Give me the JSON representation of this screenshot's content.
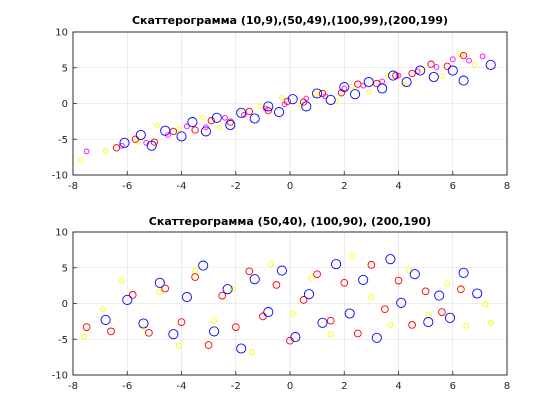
{
  "chart_data": [
    {
      "type": "scatter",
      "title": "Скаттерограмма (10,9),(50,49),(100,99),(200,199)",
      "xlabel": "",
      "ylabel": "",
      "xlim": [
        -8,
        8
      ],
      "ylim": [
        -10,
        10
      ],
      "xticks": [
        -8,
        -6,
        -4,
        -2,
        0,
        2,
        4,
        6,
        8
      ],
      "yticks": [
        -10,
        -5,
        0,
        5,
        10
      ],
      "grid": true,
      "marker": "circle-open",
      "colors": [
        "#ffff00",
        "#ff00ff",
        "#ff0000",
        "#0000ff"
      ],
      "series": [
        {
          "color": "#ffff00",
          "points": [
            [
              -7.7,
              -7.9
            ],
            [
              -6.8,
              -6.6
            ],
            [
              -5.6,
              -5.4
            ],
            [
              -4.9,
              -3.1
            ],
            [
              -4.1,
              -3.6
            ],
            [
              -3.2,
              -2.0
            ],
            [
              -2.6,
              -3.3
            ],
            [
              -1.8,
              -1.2
            ],
            [
              -1.1,
              -0.4
            ],
            [
              -0.3,
              0.8
            ],
            [
              0.4,
              -0.2
            ],
            [
              1.0,
              1.3
            ],
            [
              1.7,
              0.4
            ],
            [
              2.3,
              2.4
            ],
            [
              2.9,
              1.6
            ],
            [
              3.6,
              3.9
            ],
            [
              4.2,
              2.6
            ],
            [
              4.9,
              4.7
            ],
            [
              5.6,
              3.8
            ],
            [
              6.3,
              6.8
            ],
            [
              6.8,
              5.4
            ]
          ]
        },
        {
          "color": "#ff00ff",
          "points": [
            [
              -7.5,
              -6.7
            ],
            [
              -6.2,
              -5.9
            ],
            [
              -5.3,
              -5.5
            ],
            [
              -4.5,
              -4.4
            ],
            [
              -3.8,
              -3.2
            ],
            [
              -3.1,
              -3.3
            ],
            [
              -2.4,
              -2.0
            ],
            [
              -1.7,
              -1.6
            ],
            [
              -0.9,
              -0.7
            ],
            [
              -0.2,
              -0.1
            ],
            [
              0.6,
              0.7
            ],
            [
              1.3,
              1.0
            ],
            [
              2.0,
              2.1
            ],
            [
              2.7,
              2.5
            ],
            [
              3.4,
              3.1
            ],
            [
              4.0,
              3.9
            ],
            [
              4.7,
              4.5
            ],
            [
              5.4,
              5.1
            ],
            [
              6.0,
              6.2
            ],
            [
              6.6,
              6.0
            ],
            [
              7.1,
              6.6
            ]
          ]
        },
        {
          "color": "#ff0000",
          "points": [
            [
              -6.4,
              -6.2
            ],
            [
              -5.7,
              -5.0
            ],
            [
              -5.0,
              -5.4
            ],
            [
              -4.3,
              -3.9
            ],
            [
              -3.5,
              -3.7
            ],
            [
              -2.9,
              -2.4
            ],
            [
              -2.2,
              -2.6
            ],
            [
              -1.5,
              -1.1
            ],
            [
              -0.8,
              -1.0
            ],
            [
              -0.1,
              0.3
            ],
            [
              0.5,
              0.2
            ],
            [
              1.2,
              1.4
            ],
            [
              1.9,
              1.5
            ],
            [
              2.5,
              2.7
            ],
            [
              3.2,
              2.8
            ],
            [
              3.9,
              3.9
            ],
            [
              4.5,
              4.2
            ],
            [
              5.2,
              5.5
            ],
            [
              5.8,
              5.2
            ],
            [
              6.4,
              6.7
            ]
          ]
        },
        {
          "color": "#0000ff",
          "points": [
            [
              -6.1,
              -5.5
            ],
            [
              -5.5,
              -4.4
            ],
            [
              -5.1,
              -5.9
            ],
            [
              -4.6,
              -3.8
            ],
            [
              -4.0,
              -4.6
            ],
            [
              -3.6,
              -2.6
            ],
            [
              -3.1,
              -3.9
            ],
            [
              -2.7,
              -2.0
            ],
            [
              -2.2,
              -3.0
            ],
            [
              -1.8,
              -1.3
            ],
            [
              -1.3,
              -2.1
            ],
            [
              -0.8,
              -0.4
            ],
            [
              -0.4,
              -1.2
            ],
            [
              0.1,
              0.6
            ],
            [
              0.6,
              -0.4
            ],
            [
              1.0,
              1.4
            ],
            [
              1.5,
              0.5
            ],
            [
              2.0,
              2.3
            ],
            [
              2.4,
              1.3
            ],
            [
              2.9,
              3.0
            ],
            [
              3.4,
              2.1
            ],
            [
              3.8,
              3.9
            ],
            [
              4.3,
              3.0
            ],
            [
              4.8,
              4.6
            ],
            [
              5.3,
              3.7
            ],
            [
              6.0,
              4.6
            ],
            [
              6.4,
              3.2
            ],
            [
              7.4,
              5.4
            ]
          ]
        }
      ]
    },
    {
      "type": "scatter",
      "title": "Скаттерограмма (50,40), (100,90), (200,190)",
      "xlabel": "",
      "ylabel": "",
      "xlim": [
        -8,
        8
      ],
      "ylim": [
        -10,
        10
      ],
      "xticks": [
        -8,
        -6,
        -4,
        -2,
        0,
        2,
        4,
        6,
        8
      ],
      "yticks": [
        -10,
        -5,
        0,
        5,
        10
      ],
      "grid": true,
      "marker": "circle-open",
      "colors": [
        "#ffff00",
        "#ff0000",
        "#0000ff"
      ],
      "series": [
        {
          "color": "#ffff00",
          "points": [
            [
              -7.6,
              -4.6
            ],
            [
              -6.9,
              -0.8
            ],
            [
              -6.2,
              3.2
            ],
            [
              -5.4,
              -3.4
            ],
            [
              -4.8,
              1.6
            ],
            [
              -4.1,
              -5.9
            ],
            [
              -3.5,
              4.5
            ],
            [
              -2.8,
              -2.4
            ],
            [
              -2.1,
              2.0
            ],
            [
              -1.4,
              -6.8
            ],
            [
              -0.7,
              5.5
            ],
            [
              0.1,
              -1.4
            ],
            [
              0.8,
              3.6
            ],
            [
              1.5,
              -4.3
            ],
            [
              2.3,
              6.6
            ],
            [
              3.0,
              0.9
            ],
            [
              3.7,
              -3.0
            ],
            [
              4.4,
              4.6
            ],
            [
              5.1,
              -1.6
            ],
            [
              5.8,
              2.8
            ],
            [
              6.5,
              -3.1
            ],
            [
              7.2,
              -0.1
            ],
            [
              7.4,
              -2.7
            ]
          ]
        },
        {
          "color": "#ff0000",
          "points": [
            [
              -7.5,
              -3.3
            ],
            [
              -6.6,
              -3.9
            ],
            [
              -5.8,
              1.2
            ],
            [
              -5.2,
              -4.1
            ],
            [
              -4.6,
              2.1
            ],
            [
              -4.0,
              -2.6
            ],
            [
              -3.5,
              3.7
            ],
            [
              -3.0,
              -5.8
            ],
            [
              -2.5,
              1.1
            ],
            [
              -2.0,
              -3.3
            ],
            [
              -1.5,
              4.5
            ],
            [
              -1.0,
              -1.8
            ],
            [
              -0.5,
              2.6
            ],
            [
              0.0,
              -5.2
            ],
            [
              0.5,
              0.5
            ],
            [
              1.0,
              4.1
            ],
            [
              1.5,
              -2.4
            ],
            [
              2.0,
              2.9
            ],
            [
              2.5,
              -4.2
            ],
            [
              3.0,
              5.4
            ],
            [
              3.5,
              -0.8
            ],
            [
              4.0,
              3.2
            ],
            [
              4.5,
              -3.0
            ],
            [
              5.0,
              1.7
            ],
            [
              5.6,
              -1.2
            ],
            [
              6.3,
              2.0
            ]
          ]
        },
        {
          "color": "#0000ff",
          "points": [
            [
              -6.8,
              -2.3
            ],
            [
              -6.0,
              0.5
            ],
            [
              -5.4,
              -2.8
            ],
            [
              -4.8,
              2.9
            ],
            [
              -4.3,
              -4.3
            ],
            [
              -3.8,
              0.9
            ],
            [
              -3.2,
              5.3
            ],
            [
              -2.8,
              -3.9
            ],
            [
              -2.3,
              2.0
            ],
            [
              -1.8,
              -6.3
            ],
            [
              -1.3,
              3.4
            ],
            [
              -0.8,
              -1.2
            ],
            [
              -0.3,
              4.6
            ],
            [
              0.2,
              -4.7
            ],
            [
              0.7,
              1.3
            ],
            [
              1.2,
              -2.7
            ],
            [
              1.7,
              5.5
            ],
            [
              2.2,
              -1.4
            ],
            [
              2.7,
              3.3
            ],
            [
              3.2,
              -4.8
            ],
            [
              3.7,
              6.2
            ],
            [
              4.1,
              0.1
            ],
            [
              4.6,
              4.1
            ],
            [
              5.1,
              -2.6
            ],
            [
              5.5,
              1.1
            ],
            [
              5.9,
              -2.0
            ],
            [
              6.4,
              4.3
            ],
            [
              6.9,
              1.4
            ]
          ]
        }
      ]
    }
  ]
}
